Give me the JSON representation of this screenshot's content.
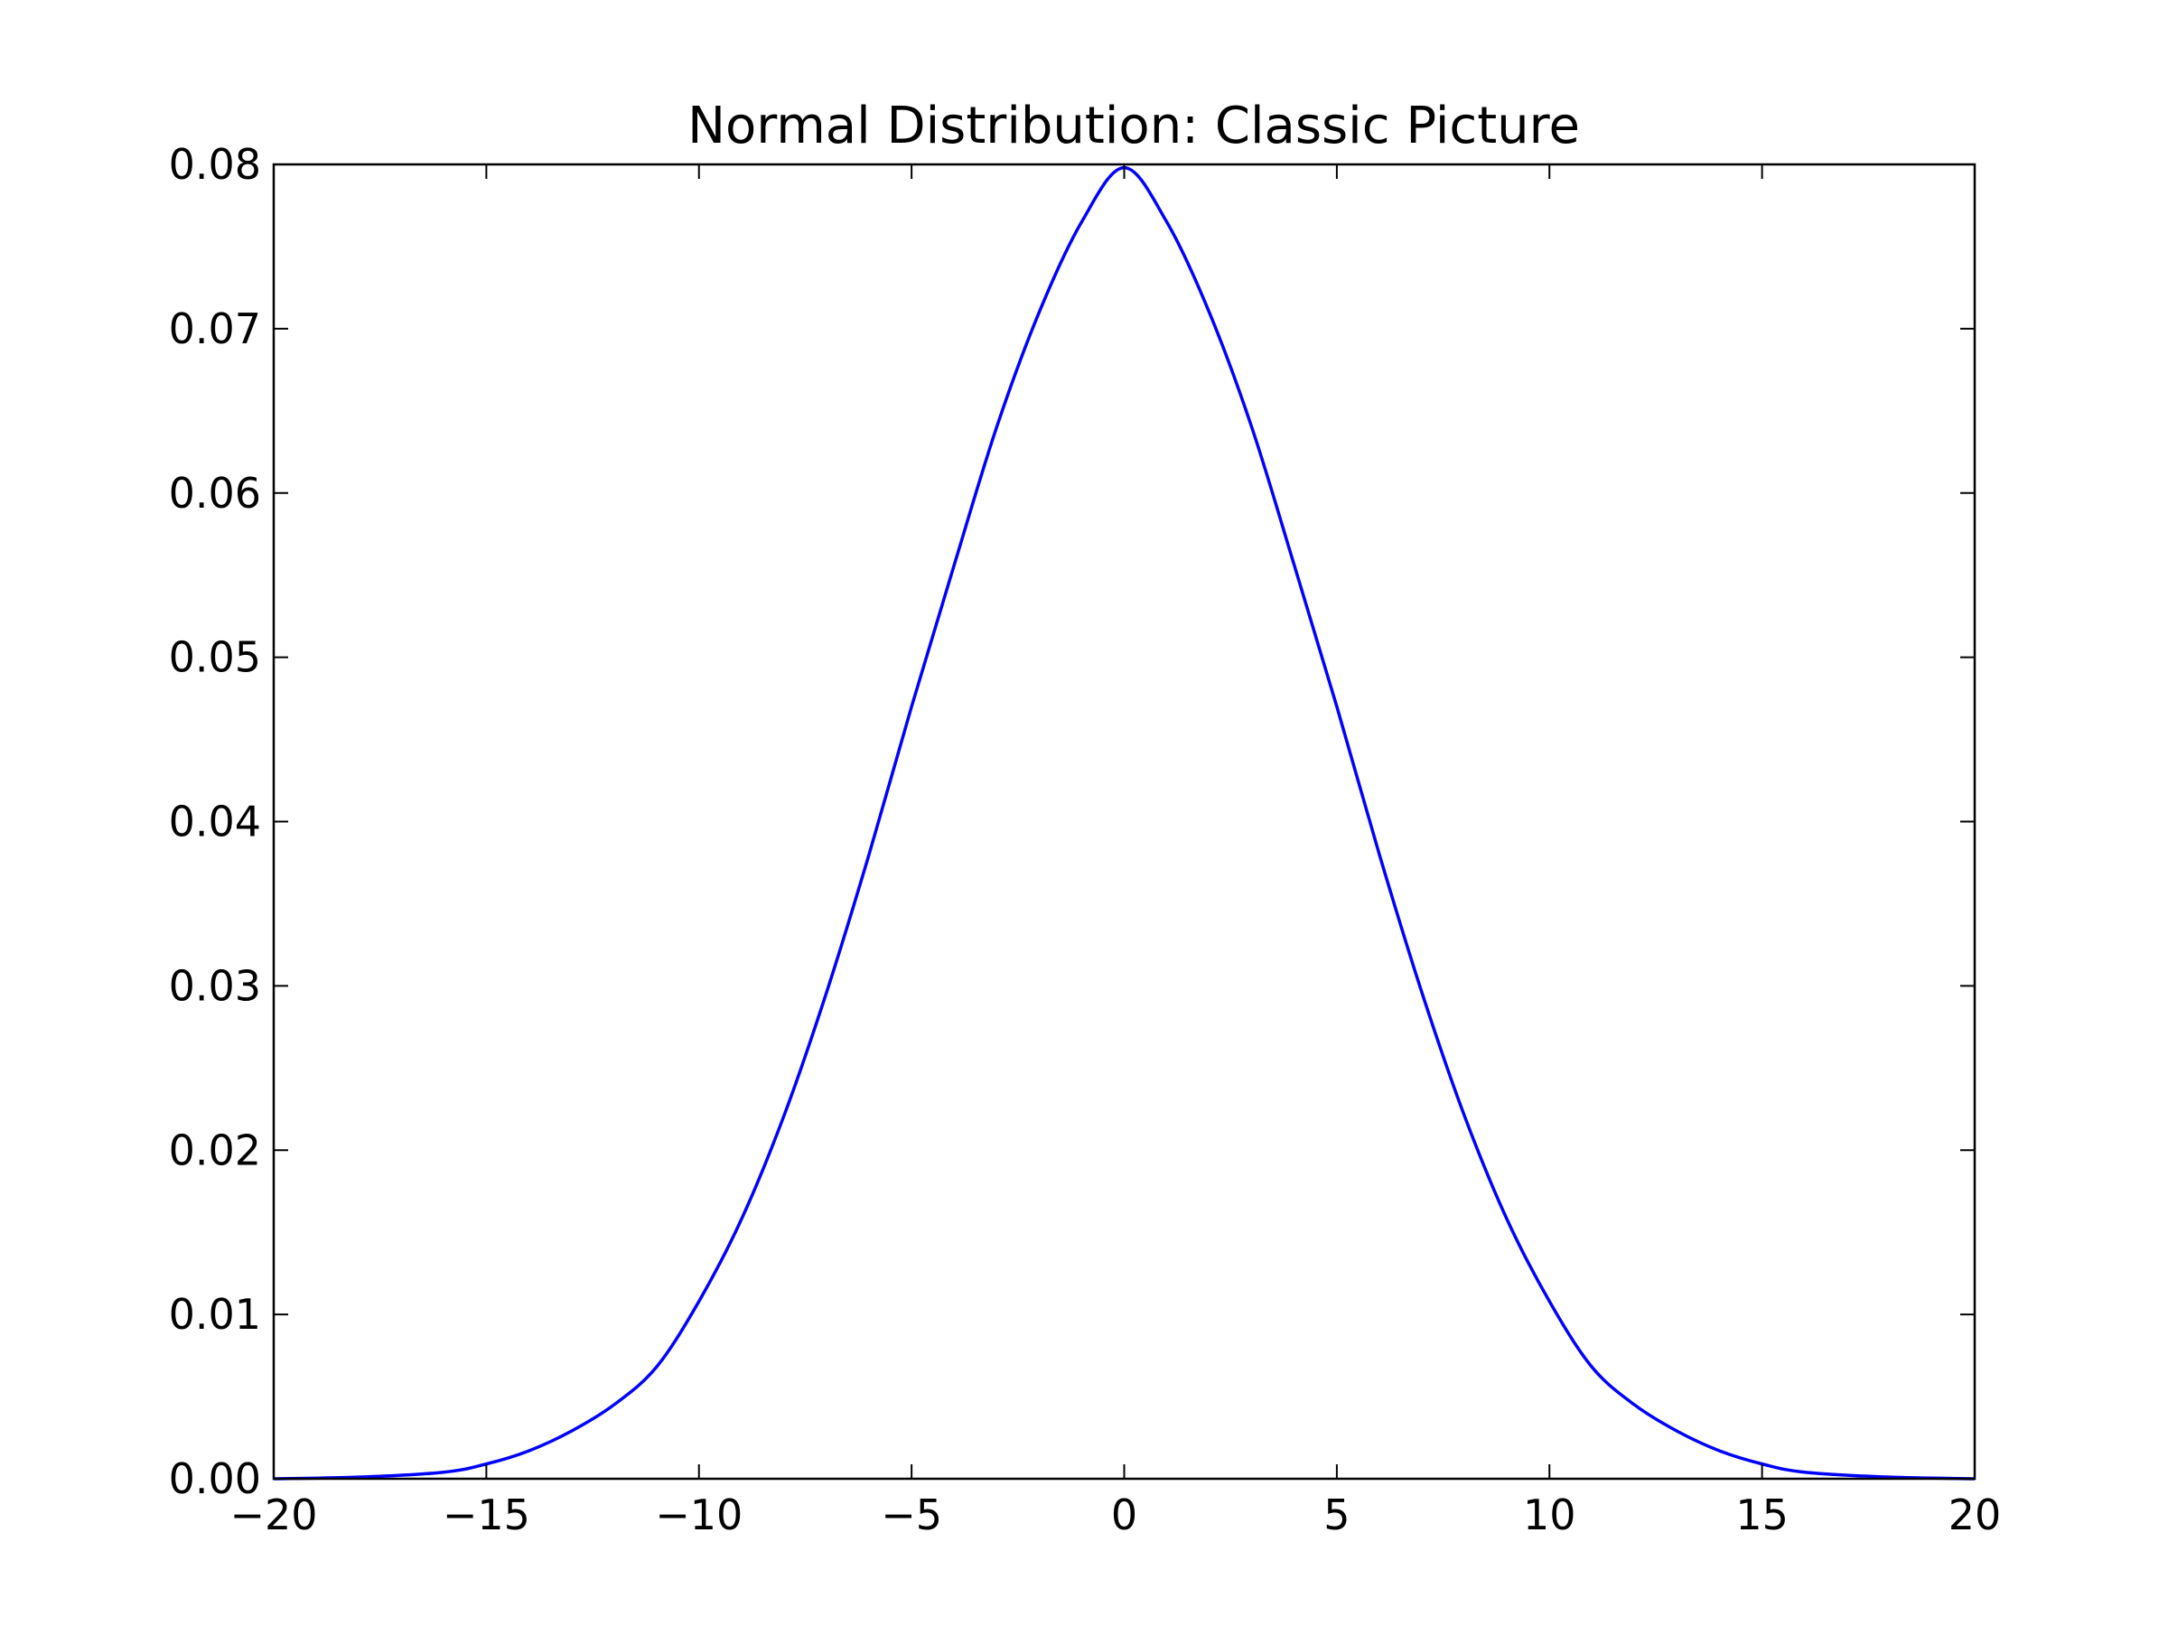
{
  "chart_data": {
    "type": "line",
    "title": "Normal Distribution: Classic Picture",
    "xlabel": "",
    "ylabel": "",
    "xlim": [
      -20,
      20
    ],
    "ylim": [
      0.0,
      0.08
    ],
    "grid": false,
    "legend": "none",
    "x_ticks": [
      -20,
      -15,
      -10,
      -5,
      0,
      5,
      10,
      15,
      20
    ],
    "x_tick_labels": [
      "−20",
      "−15",
      "−10",
      "−5",
      "0",
      "5",
      "10",
      "15",
      "20"
    ],
    "y_ticks": [
      0.0,
      0.01,
      0.02,
      0.03,
      0.04,
      0.05,
      0.06,
      0.07,
      0.08
    ],
    "y_tick_labels": [
      "0.00",
      "0.01",
      "0.02",
      "0.03",
      "0.04",
      "0.05",
      "0.06",
      "0.07",
      "0.08"
    ],
    "series": [
      {
        "color": "#0000ff",
        "x": [
          -20,
          -18,
          -16,
          -15,
          -14,
          -13,
          -12,
          -11,
          -10,
          -9,
          -8,
          -7,
          -6,
          -5,
          -4,
          -3,
          -2,
          -1,
          0,
          1,
          2,
          3,
          4,
          5,
          6,
          7,
          8,
          9,
          10,
          11,
          12,
          13,
          14,
          15,
          16,
          18,
          20
        ],
        "y": [
          0.0,
          0.0001,
          0.0004,
          0.0009,
          0.0017,
          0.0029,
          0.0045,
          0.0068,
          0.0108,
          0.0158,
          0.0221,
          0.0296,
          0.038,
          0.047,
          0.0556,
          0.064,
          0.071,
          0.0765,
          0.0798,
          0.0765,
          0.071,
          0.064,
          0.0556,
          0.047,
          0.038,
          0.0296,
          0.0221,
          0.0158,
          0.0108,
          0.0068,
          0.0045,
          0.0029,
          0.0017,
          0.0009,
          0.0004,
          0.0001,
          0.0
        ]
      }
    ]
  }
}
